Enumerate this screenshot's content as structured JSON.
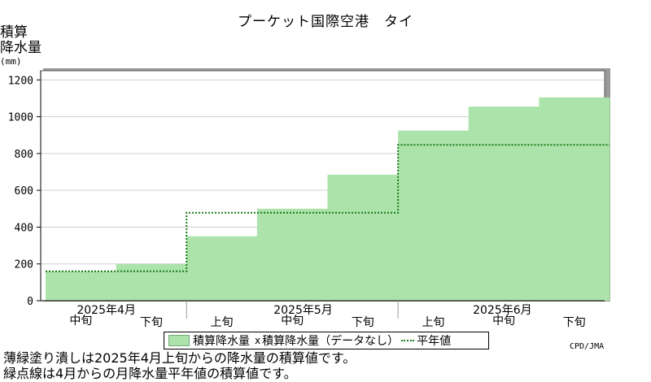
{
  "chart_data": {
    "type": "area",
    "title": "プーケット国際空港　タイ",
    "ylabel": "積算\n降水量",
    "yunit": "(mm)",
    "ylim": [
      0,
      1250
    ],
    "yticks": [
      0,
      200,
      400,
      600,
      800,
      1000,
      1200
    ],
    "grid": true,
    "periods": [
      "中旬",
      "下旬",
      "上旬",
      "中旬",
      "下旬",
      "上旬",
      "中旬",
      "下旬"
    ],
    "months": [
      "2025年4月",
      "2025年5月",
      "2025年6月"
    ],
    "series": [
      {
        "name": "積算降水量",
        "style": "filled-step",
        "color": "#abe3aa",
        "values": [
          160,
          200,
          350,
          500,
          685,
          925,
          1055,
          1105
        ]
      },
      {
        "name": "平年値",
        "style": "dotted-step",
        "color": "#1a7a1a",
        "values": [
          160,
          160,
          478,
          478,
          478,
          847,
          847,
          847
        ]
      }
    ],
    "legend": {
      "position": "bottom",
      "items": [
        "積算降水量",
        "積算降水量（データなし）",
        "平年値"
      ],
      "marker_missing": "x"
    }
  },
  "credit": "CPD/JMA",
  "notes": [
    "薄緑塗り潰しは2025年4月上旬からの降水量の積算値です。",
    "緑点線は4月からの月降水量平年値の積算値です。"
  ]
}
